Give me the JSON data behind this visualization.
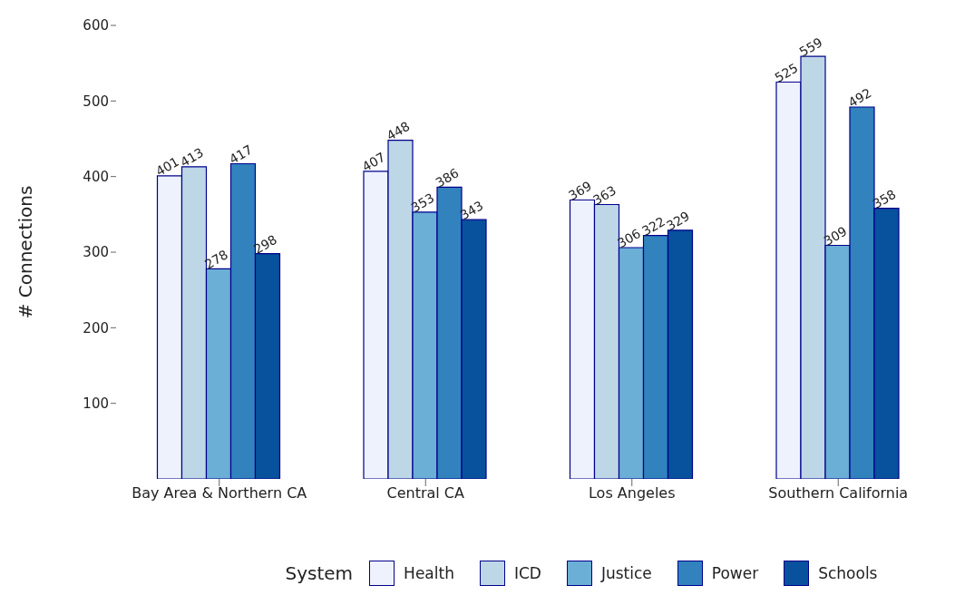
{
  "chart_data": {
    "type": "bar",
    "ylabel": "# Connections",
    "legend_title": "System",
    "categories": [
      "Bay Area & Northern CA",
      "Central CA",
      "Los Angeles",
      "Southern California"
    ],
    "series": [
      {
        "name": "Health",
        "color": "#eef2fd",
        "values": [
          401,
          407,
          369,
          525
        ]
      },
      {
        "name": "ICD",
        "color": "#bdd7e7",
        "values": [
          413,
          448,
          363,
          559
        ]
      },
      {
        "name": "Justice",
        "color": "#6baed6",
        "values": [
          278,
          353,
          306,
          309
        ]
      },
      {
        "name": "Power",
        "color": "#3182bd",
        "values": [
          417,
          386,
          322,
          492
        ]
      },
      {
        "name": "Schools",
        "color": "#08519c",
        "values": [
          298,
          343,
          329,
          358
        ]
      }
    ],
    "ylim": [
      0,
      600
    ],
    "yticks": [
      100,
      200,
      300,
      400,
      500,
      600
    ],
    "grid": false,
    "legend": "bottom",
    "data_labels": true
  }
}
